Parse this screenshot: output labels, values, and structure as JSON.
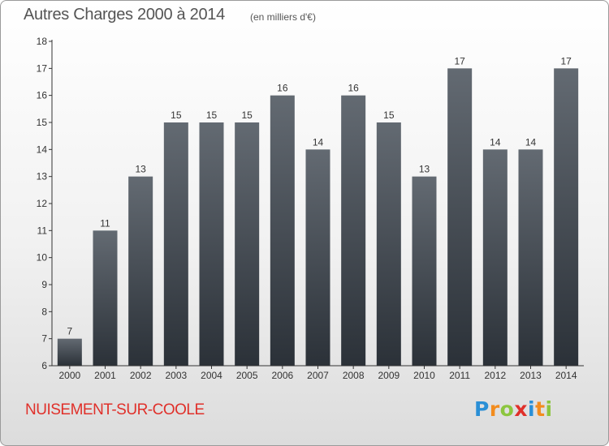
{
  "header": {
    "title": "Autres Charges 2000 à 2014",
    "subtitle": "(en milliers d'€)"
  },
  "footer": {
    "commune": "NUISEMENT-SUR-COOLE",
    "logo_letters": [
      {
        "ch": "P",
        "color": "#2a8fd6"
      },
      {
        "ch": "r",
        "color": "#f28c1e"
      },
      {
        "ch": "o",
        "color": "#8cc63f"
      },
      {
        "ch": "x",
        "color": "#e0302a"
      },
      {
        "ch": "i",
        "color": "#2a8fd6"
      },
      {
        "ch": "t",
        "color": "#f28c1e"
      },
      {
        "ch": "i",
        "color": "#8cc63f"
      }
    ]
  },
  "colors": {
    "bar_top": "#636a72",
    "bar_bottom": "#2b3138",
    "axis": "#333333",
    "label": "#333333",
    "commune": "#e0302a"
  },
  "chart_data": {
    "type": "bar",
    "categories": [
      "2000",
      "2001",
      "2002",
      "2003",
      "2004",
      "2005",
      "2006",
      "2007",
      "2008",
      "2009",
      "2010",
      "2011",
      "2012",
      "2013",
      "2014"
    ],
    "values": [
      7,
      11,
      13,
      15,
      15,
      15,
      16,
      14,
      16,
      15,
      13,
      17,
      14,
      14,
      17
    ],
    "title": "Autres Charges 2000 à 2014",
    "subtitle": "(en milliers d'€)",
    "ylim": [
      6,
      18
    ],
    "yticks": [
      6,
      7,
      8,
      9,
      10,
      11,
      12,
      13,
      14,
      15,
      16,
      17,
      18
    ],
    "data_labels": true,
    "grid": false
  }
}
